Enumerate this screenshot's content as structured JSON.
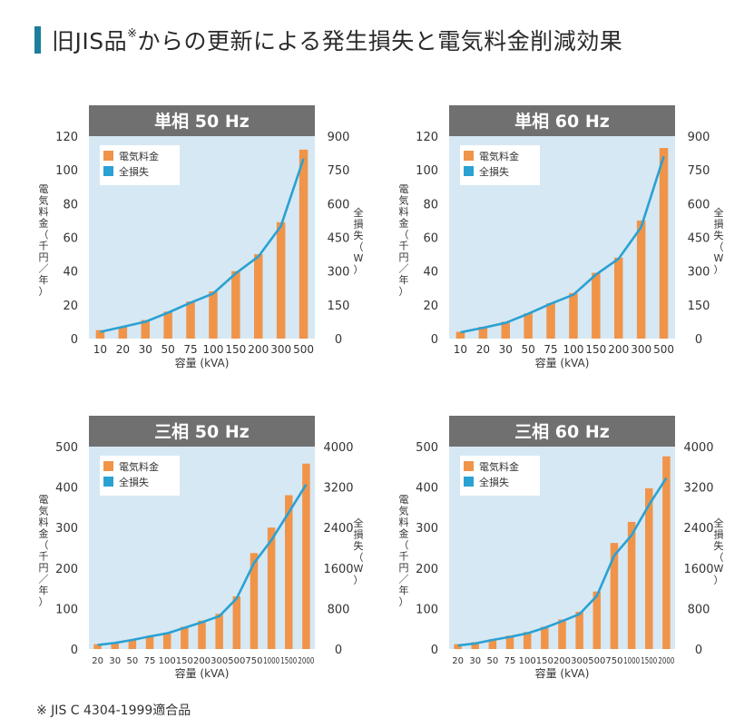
{
  "page": {
    "title": "旧JIS品",
    "title_mark": "※",
    "title_rest": "からの更新による発生損失と電気料金削減効果",
    "footnote": "※ JIS C 4304-1999適合品",
    "colors": {
      "accent": "#1b7f9b",
      "bar": "#f0944a",
      "line": "#2aa1d3",
      "plot_bg": "#d6e8f3",
      "header_bg": "#707070"
    }
  },
  "chart_data": [
    {
      "type": "bar",
      "title": "単相 50 Hz",
      "ylabel": "電気料金（千円／年）",
      "y2label": "全損失（W）",
      "xlabel": "容量 (kVA)",
      "legend": [
        "電気料金",
        "全損失"
      ],
      "legend_position": "top-left",
      "categories": [
        "10",
        "20",
        "30",
        "50",
        "75",
        "100",
        "150",
        "200",
        "300",
        "500"
      ],
      "ylim": [
        0,
        120
      ],
      "yticks": [
        0,
        20,
        40,
        60,
        80,
        100,
        120
      ],
      "y2lim": [
        0,
        900
      ],
      "y2ticks": [
        0,
        150,
        300,
        450,
        600,
        750,
        900
      ],
      "series": [
        {
          "name": "電気料金",
          "kind": "bar",
          "axis": "left",
          "values": [
            5,
            7,
            11,
            16,
            22,
            28,
            40,
            50,
            69,
            112
          ]
        },
        {
          "name": "全損失",
          "kind": "line",
          "axis": "right",
          "values": [
            30,
            52,
            75,
            115,
            160,
            200,
            290,
            365,
            500,
            800
          ]
        }
      ]
    },
    {
      "type": "bar",
      "title": "単相 60 Hz",
      "ylabel": "電気料金（千円／年）",
      "y2label": "全損失（W）",
      "xlabel": "容量 (kVA)",
      "legend": [
        "電気料金",
        "全損失"
      ],
      "legend_position": "top-left",
      "categories": [
        "10",
        "20",
        "30",
        "50",
        "75",
        "100",
        "150",
        "200",
        "300",
        "500"
      ],
      "ylim": [
        0,
        120
      ],
      "yticks": [
        0,
        20,
        40,
        60,
        80,
        100,
        120
      ],
      "y2lim": [
        0,
        900
      ],
      "y2ticks": [
        0,
        150,
        300,
        450,
        600,
        750,
        900
      ],
      "series": [
        {
          "name": "電気料金",
          "kind": "bar",
          "axis": "left",
          "values": [
            4,
            7,
            10,
            15,
            21,
            27,
            39,
            48,
            70,
            113
          ]
        },
        {
          "name": "全損失",
          "kind": "line",
          "axis": "right",
          "values": [
            28,
            48,
            70,
            110,
            155,
            195,
            285,
            355,
            495,
            810
          ]
        }
      ]
    },
    {
      "type": "bar",
      "title": "三相 50 Hz",
      "ylabel": "電気料金（千円／年）",
      "y2label": "全損失（W）",
      "xlabel": "容量 (kVA)",
      "legend": [
        "電気料金",
        "全損失"
      ],
      "legend_position": "top-left",
      "categories": [
        "20",
        "30",
        "50",
        "75",
        "100",
        "150",
        "200",
        "300",
        "500",
        "750",
        "1000",
        "1500",
        "2000"
      ],
      "ylim": [
        0,
        500
      ],
      "yticks": [
        0,
        100,
        200,
        300,
        400,
        500
      ],
      "y2lim": [
        0,
        4000
      ],
      "y2ticks": [
        0,
        800,
        1600,
        2400,
        3200,
        4000
      ],
      "series": [
        {
          "name": "電気料金",
          "kind": "bar",
          "axis": "left",
          "values": [
            12,
            16,
            22,
            32,
            40,
            55,
            70,
            87,
            130,
            237,
            300,
            380,
            458
          ]
        },
        {
          "name": "全損失",
          "kind": "line",
          "axis": "right",
          "values": [
            80,
            120,
            180,
            250,
            310,
            420,
            530,
            650,
            1000,
            1700,
            2150,
            2700,
            3250
          ]
        }
      ]
    },
    {
      "type": "bar",
      "title": "三相 60 Hz",
      "ylabel": "電気料金（千円／年）",
      "y2label": "全損失（W）",
      "xlabel": "容量 (kVA)",
      "legend": [
        "電気料金",
        "全損失"
      ],
      "legend_position": "top-left",
      "categories": [
        "20",
        "30",
        "50",
        "75",
        "100",
        "150",
        "200",
        "300",
        "500",
        "750",
        "1000",
        "1500",
        "2000"
      ],
      "ylim": [
        0,
        500
      ],
      "yticks": [
        0,
        100,
        200,
        300,
        400,
        500
      ],
      "y2lim": [
        0,
        4000
      ],
      "y2ticks": [
        0,
        800,
        1600,
        2400,
        3200,
        4000
      ],
      "series": [
        {
          "name": "電気料金",
          "kind": "bar",
          "axis": "left",
          "values": [
            12,
            17,
            24,
            33,
            42,
            55,
            73,
            92,
            142,
            262,
            314,
            397,
            476
          ]
        },
        {
          "name": "全損失",
          "kind": "line",
          "axis": "right",
          "values": [
            70,
            110,
            180,
            240,
            310,
            420,
            550,
            690,
            1050,
            1850,
            2250,
            2850,
            3380
          ]
        }
      ]
    }
  ]
}
